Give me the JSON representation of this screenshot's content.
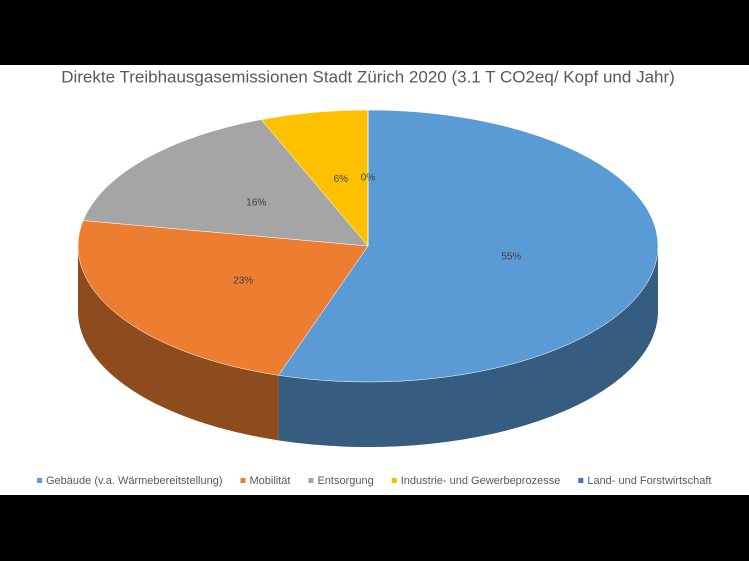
{
  "chart_data": {
    "type": "pie3d",
    "title": "Direkte Treibhausgasemissionen Stadt Zürich 2020 (3.1 T CO2eq/ Kopf und Jahr)",
    "categories": [
      "Gebäude (v.a. Wärmebereitstellung)",
      "Mobilität",
      "Entsorgung",
      "Industrie- und Gewerbeprozesse",
      "Land- und Forstwirtschaft"
    ],
    "values": [
      55,
      23,
      16,
      6,
      0
    ],
    "value_labels": [
      "55%",
      "23%",
      "16%",
      "6%",
      "0%"
    ],
    "colors": [
      "#5b9bd5",
      "#ed7d31",
      "#a5a5a5",
      "#ffc000",
      "#4472c4"
    ],
    "legend": "bottom"
  }
}
